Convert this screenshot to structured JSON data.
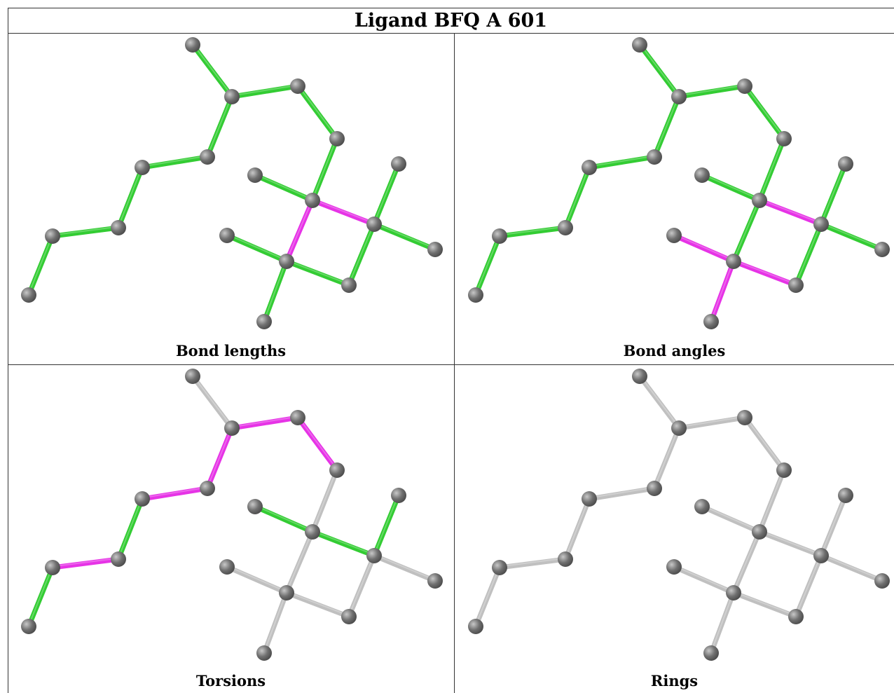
{
  "title": "Ligand BFQ A 601",
  "colors": {
    "green": "#33cc33",
    "magenta": "#e633e6",
    "grey": "#c0c0c0",
    "atom": "#707070"
  },
  "panels": [
    {
      "caption": "Bond lengths",
      "bond_colors": [
        "green",
        "green",
        "green",
        "green",
        "green",
        "green",
        "green",
        "green",
        "green",
        "green",
        "magenta",
        "magenta",
        "green",
        "green",
        "green",
        "green",
        "green",
        "green",
        "green"
      ]
    },
    {
      "caption": "Bond angles",
      "bond_colors": [
        "green",
        "green",
        "green",
        "green",
        "green",
        "green",
        "green",
        "green",
        "green",
        "green",
        "green",
        "magenta",
        "green",
        "green",
        "green",
        "magenta",
        "magenta",
        "magenta",
        "green"
      ]
    },
    {
      "caption": "Torsions",
      "bond_colors": [
        "grey",
        "magenta",
        "magenta",
        "magenta",
        "magenta",
        "green",
        "magenta",
        "green",
        "grey",
        "green",
        "grey",
        "green",
        "green",
        "grey",
        "grey",
        "grey",
        "grey",
        "grey",
        "grey"
      ]
    },
    {
      "caption": "Rings",
      "bond_colors": [
        "grey",
        "grey",
        "grey",
        "grey",
        "grey",
        "grey",
        "grey",
        "grey",
        "grey",
        "grey",
        "grey",
        "grey",
        "grey",
        "grey",
        "grey",
        "grey",
        "grey",
        "grey",
        "grey"
      ]
    }
  ]
}
